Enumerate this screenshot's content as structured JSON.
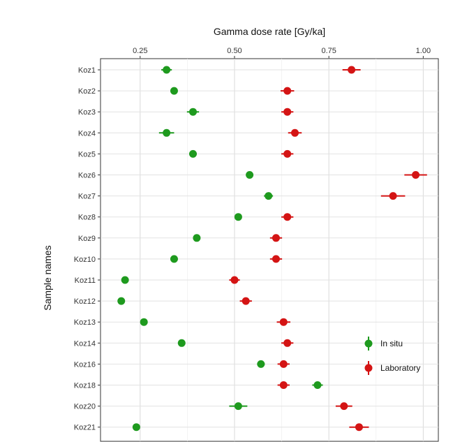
{
  "chart_data": {
    "type": "scatter",
    "title": "",
    "xlabel": "Gamma dose rate [Gy/ka]",
    "ylabel": "Sample names",
    "xlim": [
      0.145,
      1.04
    ],
    "x_ticks": [
      0.25,
      0.5,
      0.75,
      1.0
    ],
    "x_tick_labels": [
      "0.25",
      "0.50",
      "0.75",
      "1.00"
    ],
    "x_axis_position": "top",
    "grid": true,
    "categories": [
      "Koz1",
      "Koz2",
      "Koz3",
      "Koz4",
      "Koz5",
      "Koz6",
      "Koz7",
      "Koz8",
      "Koz9",
      "Koz10",
      "Koz11",
      "Koz12",
      "Koz13",
      "Koz14",
      "Koz16",
      "Koz18",
      "Koz20",
      "Koz21"
    ],
    "series": [
      {
        "name": "In situ",
        "color": "#1e9a1e",
        "values": [
          0.32,
          0.34,
          0.39,
          0.32,
          0.39,
          0.54,
          0.59,
          0.51,
          0.4,
          0.34,
          0.21,
          0.2,
          0.26,
          0.36,
          0.57,
          0.72,
          0.51,
          0.24
        ],
        "errors": [
          0.014,
          0.008,
          0.016,
          0.02,
          0.01,
          0.008,
          0.012,
          0.008,
          0.008,
          0.01,
          0.008,
          0.008,
          0.008,
          0.008,
          0.01,
          0.014,
          0.024,
          0.008
        ]
      },
      {
        "name": "Laboratory",
        "color": "#d41414",
        "values": [
          0.81,
          0.64,
          0.64,
          0.66,
          0.64,
          0.98,
          0.92,
          0.64,
          0.61,
          0.61,
          0.5,
          0.53,
          0.63,
          0.64,
          0.63,
          0.63,
          0.79,
          0.83
        ],
        "errors": [
          0.024,
          0.018,
          0.016,
          0.018,
          0.016,
          0.03,
          0.032,
          0.016,
          0.016,
          0.016,
          0.014,
          0.016,
          0.018,
          0.016,
          0.016,
          0.016,
          0.022,
          0.026
        ]
      }
    ],
    "legend": {
      "placement": "bottom-right",
      "entries": [
        "In situ",
        "Laboratory"
      ]
    }
  }
}
